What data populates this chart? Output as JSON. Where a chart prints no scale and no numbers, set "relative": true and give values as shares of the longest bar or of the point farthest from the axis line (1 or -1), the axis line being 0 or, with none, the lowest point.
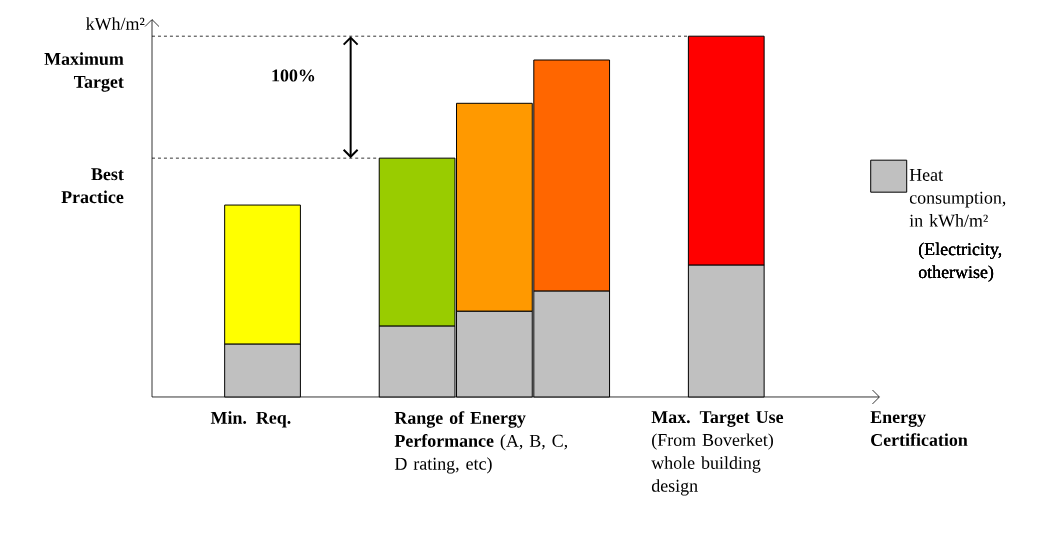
{
  "chart_data": {
    "type": "bar",
    "stacked": true,
    "relative": true,
    "ylabel": "kWh/m²",
    "categories": [
      "Min. Req.",
      null,
      null,
      "**Range of Energy Performance** (A, B, C, D rating, etc)",
      null,
      null,
      "**Max. Target Use** (From Boverket) whole building design"
    ],
    "series": [
      {
        "name": "Heat consumption, in kWh/m²",
        "color": "#c0c0c0",
        "values": [
          0.147,
          null,
          0.197,
          0.238,
          0.294,
          null,
          0.366
        ]
      },
      {
        "colors": [
          "#ffff00",
          null,
          "#99cc00",
          "#ff9900",
          "#ff6600",
          null,
          "#ff0000"
        ],
        "values": [
          0.385,
          null,
          0.465,
          0.576,
          0.64,
          null,
          0.634
        ]
      }
    ],
    "ref_lines": [
      {
        "axis": "y",
        "value": 1,
        "label": "Maximum Target",
        "line_style": "dashed"
      },
      {
        "axis": "y",
        "value": 0.662,
        "label": "Best Practice",
        "line_style": "dashed"
      }
    ],
    "annotations": [
      "100%",
      "(Electricity, otherwise)",
      "Energy Certification"
    ],
    "legend": "right"
  }
}
